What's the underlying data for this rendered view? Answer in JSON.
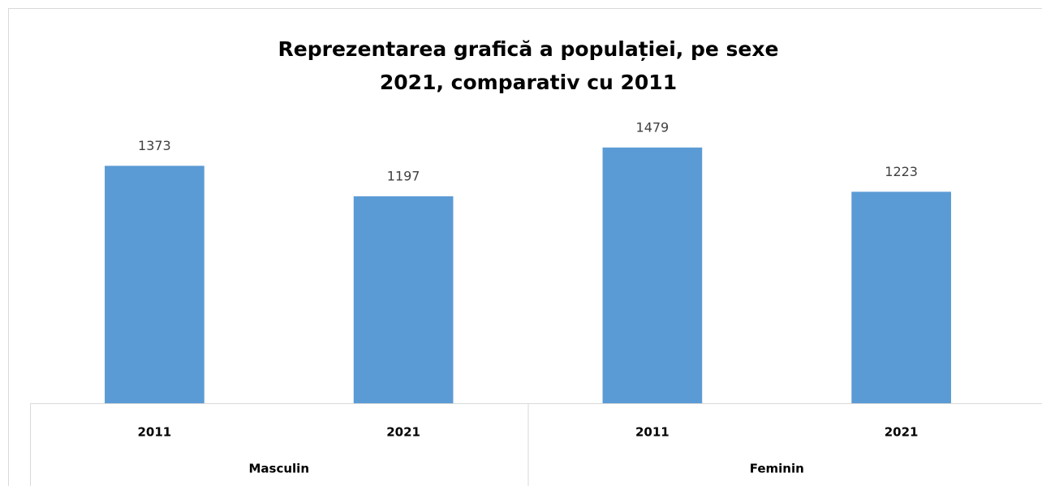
{
  "chart_data": {
    "type": "bar",
    "title": [
      "Reprezentarea grafică a populației, pe sexe",
      "2021, comparativ cu 2011"
    ],
    "groups": [
      {
        "name": "Masculin",
        "categories": [
          "2011",
          "2021"
        ],
        "values": [
          1373,
          1197
        ]
      },
      {
        "name": "Feminin",
        "categories": [
          "2011",
          "2021"
        ],
        "values": [
          1479,
          1223
        ]
      }
    ],
    "color": "#5b9bd5",
    "ylim": [
      0,
      1600
    ]
  }
}
